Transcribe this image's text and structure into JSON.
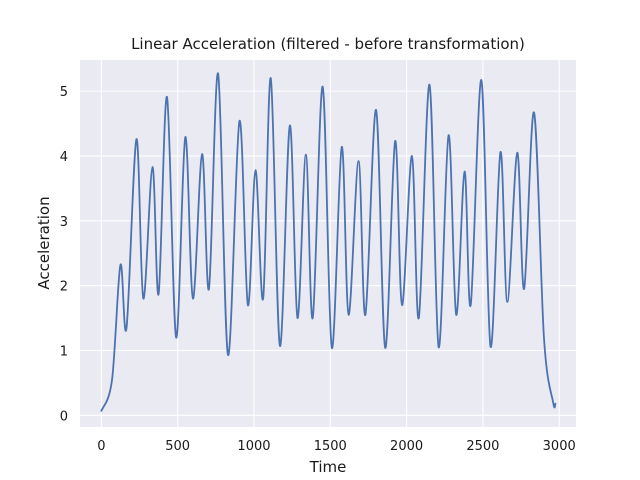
{
  "chart_data": {
    "type": "line",
    "title": "Linear Acceleration (filtered - before transformation)",
    "xlabel": "Time",
    "ylabel": "Acceleration",
    "xlim": [
      -140,
      3110
    ],
    "ylim": [
      -0.18,
      5.48
    ],
    "xticks": [
      0,
      500,
      1000,
      1500,
      2000,
      2500,
      3000
    ],
    "yticks": [
      0,
      1,
      2,
      3,
      4,
      5
    ],
    "grid": true,
    "background": "#eaeaf2",
    "series": [
      {
        "color": "#4c72b0",
        "points": [
          [
            0,
            0.07
          ],
          [
            70,
            0.55
          ],
          [
            125,
            2.32
          ],
          [
            165,
            1.35
          ],
          [
            230,
            4.26
          ],
          [
            275,
            1.8
          ],
          [
            335,
            3.83
          ],
          [
            375,
            1.87
          ],
          [
            430,
            4.91
          ],
          [
            490,
            1.2
          ],
          [
            550,
            4.29
          ],
          [
            600,
            1.8
          ],
          [
            660,
            4.03
          ],
          [
            705,
            1.95
          ],
          [
            765,
            5.27
          ],
          [
            830,
            0.93
          ],
          [
            905,
            4.54
          ],
          [
            960,
            1.7
          ],
          [
            1010,
            3.78
          ],
          [
            1060,
            1.8
          ],
          [
            1110,
            5.2
          ],
          [
            1170,
            1.07
          ],
          [
            1235,
            4.47
          ],
          [
            1285,
            1.5
          ],
          [
            1340,
            4.02
          ],
          [
            1385,
            1.5
          ],
          [
            1450,
            5.07
          ],
          [
            1510,
            1.04
          ],
          [
            1575,
            4.14
          ],
          [
            1620,
            1.55
          ],
          [
            1685,
            3.92
          ],
          [
            1730,
            1.55
          ],
          [
            1800,
            4.71
          ],
          [
            1860,
            1.04
          ],
          [
            1925,
            4.23
          ],
          [
            1970,
            1.7
          ],
          [
            2035,
            4.0
          ],
          [
            2080,
            1.5
          ],
          [
            2150,
            5.1
          ],
          [
            2210,
            1.05
          ],
          [
            2275,
            4.32
          ],
          [
            2325,
            1.55
          ],
          [
            2380,
            3.76
          ],
          [
            2420,
            1.7
          ],
          [
            2490,
            5.17
          ],
          [
            2550,
            1.06
          ],
          [
            2615,
            4.06
          ],
          [
            2660,
            1.75
          ],
          [
            2725,
            4.05
          ],
          [
            2770,
            1.95
          ],
          [
            2835,
            4.67
          ],
          [
            2900,
            1.2
          ],
          [
            2960,
            0.2
          ],
          [
            2975,
            0.18
          ]
        ]
      }
    ]
  }
}
